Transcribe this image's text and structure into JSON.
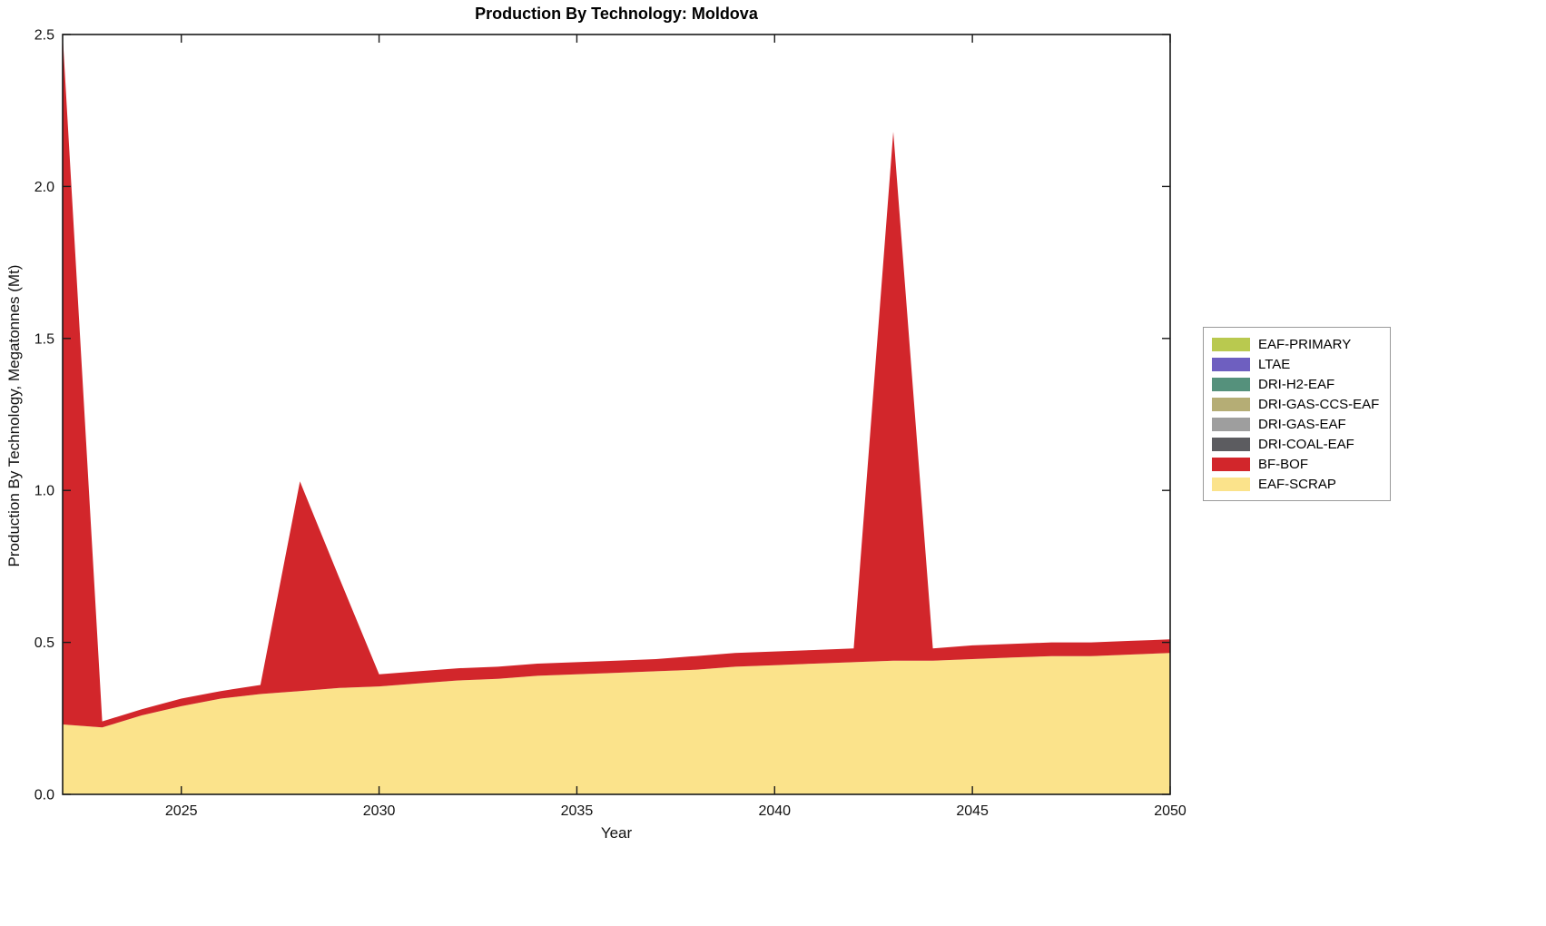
{
  "title": "Production By Technology: Moldova",
  "xlabel": "Year",
  "ylabel": "Production By Technology, Megatonnes (Mt)",
  "chart_data": {
    "type": "area",
    "stacked": true,
    "title": "Production By Technology: Moldova",
    "xlabel": "Year",
    "ylabel": "Production By Technology, Megatonnes (Mt)",
    "xlim": [
      2022,
      2050
    ],
    "ylim": [
      0,
      2.5
    ],
    "grid": false,
    "legend_position": "right-outside",
    "x": [
      2022,
      2023,
      2024,
      2025,
      2026,
      2027,
      2028,
      2029,
      2030,
      2031,
      2032,
      2033,
      2034,
      2035,
      2036,
      2037,
      2038,
      2039,
      2040,
      2041,
      2042,
      2043,
      2044,
      2045,
      2046,
      2047,
      2048,
      2049,
      2050
    ],
    "xticks": {
      "values": [
        2025,
        2030,
        2035,
        2040,
        2045,
        2050
      ],
      "labels": [
        "2025",
        "2030",
        "2035",
        "2040",
        "2045",
        "2050"
      ]
    },
    "yticks": {
      "values": [
        0,
        0.5,
        1.0,
        1.5,
        2.0,
        2.5
      ],
      "labels": [
        "0.0",
        "0.5",
        "1.0",
        "1.5",
        "2.0",
        "2.5"
      ]
    },
    "series": [
      {
        "name": "EAF-SCRAP",
        "color": "#fbe38b",
        "values": [
          0.23,
          0.22,
          0.26,
          0.29,
          0.315,
          0.33,
          0.34,
          0.35,
          0.355,
          0.365,
          0.375,
          0.38,
          0.39,
          0.395,
          0.4,
          0.405,
          0.41,
          0.42,
          0.425,
          0.43,
          0.435,
          0.44,
          0.44,
          0.445,
          0.45,
          0.455,
          0.455,
          0.46,
          0.465
        ]
      },
      {
        "name": "BF-BOF",
        "color": "#d2262b",
        "values": [
          2.27,
          0.02,
          0.02,
          0.025,
          0.025,
          0.03,
          0.69,
          0.36,
          0.04,
          0.04,
          0.04,
          0.04,
          0.04,
          0.04,
          0.04,
          0.04,
          0.045,
          0.045,
          0.045,
          0.045,
          0.045,
          1.74,
          0.04,
          0.045,
          0.045,
          0.045,
          0.045,
          0.045,
          0.045
        ]
      },
      {
        "name": "DRI-COAL-EAF",
        "color": "#5c5c60",
        "values": [
          0,
          0,
          0,
          0,
          0,
          0,
          0,
          0,
          0,
          0,
          0,
          0,
          0,
          0,
          0,
          0,
          0,
          0,
          0,
          0,
          0,
          0,
          0,
          0,
          0,
          0,
          0,
          0,
          0
        ]
      },
      {
        "name": "DRI-GAS-EAF",
        "color": "#9e9e9e",
        "values": [
          0,
          0,
          0,
          0,
          0,
          0,
          0,
          0,
          0,
          0,
          0,
          0,
          0,
          0,
          0,
          0,
          0,
          0,
          0,
          0,
          0,
          0,
          0,
          0,
          0,
          0,
          0,
          0,
          0
        ]
      },
      {
        "name": "DRI-GAS-CCS-EAF",
        "color": "#b5ad75",
        "values": [
          0,
          0,
          0,
          0,
          0,
          0,
          0,
          0,
          0,
          0,
          0,
          0,
          0,
          0,
          0,
          0,
          0,
          0,
          0,
          0,
          0,
          0,
          0,
          0,
          0,
          0,
          0,
          0,
          0
        ]
      },
      {
        "name": "DRI-H2-EAF",
        "color": "#55917c",
        "values": [
          0,
          0,
          0,
          0,
          0,
          0,
          0,
          0,
          0,
          0,
          0,
          0,
          0,
          0,
          0,
          0,
          0,
          0,
          0,
          0,
          0,
          0,
          0,
          0,
          0,
          0,
          0,
          0,
          0
        ]
      },
      {
        "name": "LTAE",
        "color": "#6e5fc0",
        "values": [
          0,
          0,
          0,
          0,
          0,
          0,
          0,
          0,
          0,
          0,
          0,
          0,
          0,
          0,
          0,
          0,
          0,
          0,
          0,
          0,
          0,
          0,
          0,
          0,
          0,
          0,
          0,
          0,
          0
        ]
      },
      {
        "name": "EAF-PRIMARY",
        "color": "#b9c94f",
        "values": [
          0,
          0,
          0,
          0,
          0,
          0,
          0,
          0,
          0,
          0,
          0,
          0,
          0,
          0,
          0,
          0,
          0,
          0,
          0,
          0,
          0,
          0,
          0,
          0,
          0,
          0,
          0,
          0,
          0
        ]
      }
    ],
    "legend": {
      "items": [
        {
          "label": "EAF-PRIMARY",
          "color": "#b9c94f"
        },
        {
          "label": "LTAE",
          "color": "#6e5fc0"
        },
        {
          "label": "DRI-H2-EAF",
          "color": "#55917c"
        },
        {
          "label": "DRI-GAS-CCS-EAF",
          "color": "#b5ad75"
        },
        {
          "label": "DRI-GAS-EAF",
          "color": "#9e9e9e"
        },
        {
          "label": "DRI-COAL-EAF",
          "color": "#5c5c60"
        },
        {
          "label": "BF-BOF",
          "color": "#d2262b"
        },
        {
          "label": "EAF-SCRAP",
          "color": "#fbe38b"
        }
      ]
    },
    "axis_color": "#1a1a1a"
  }
}
